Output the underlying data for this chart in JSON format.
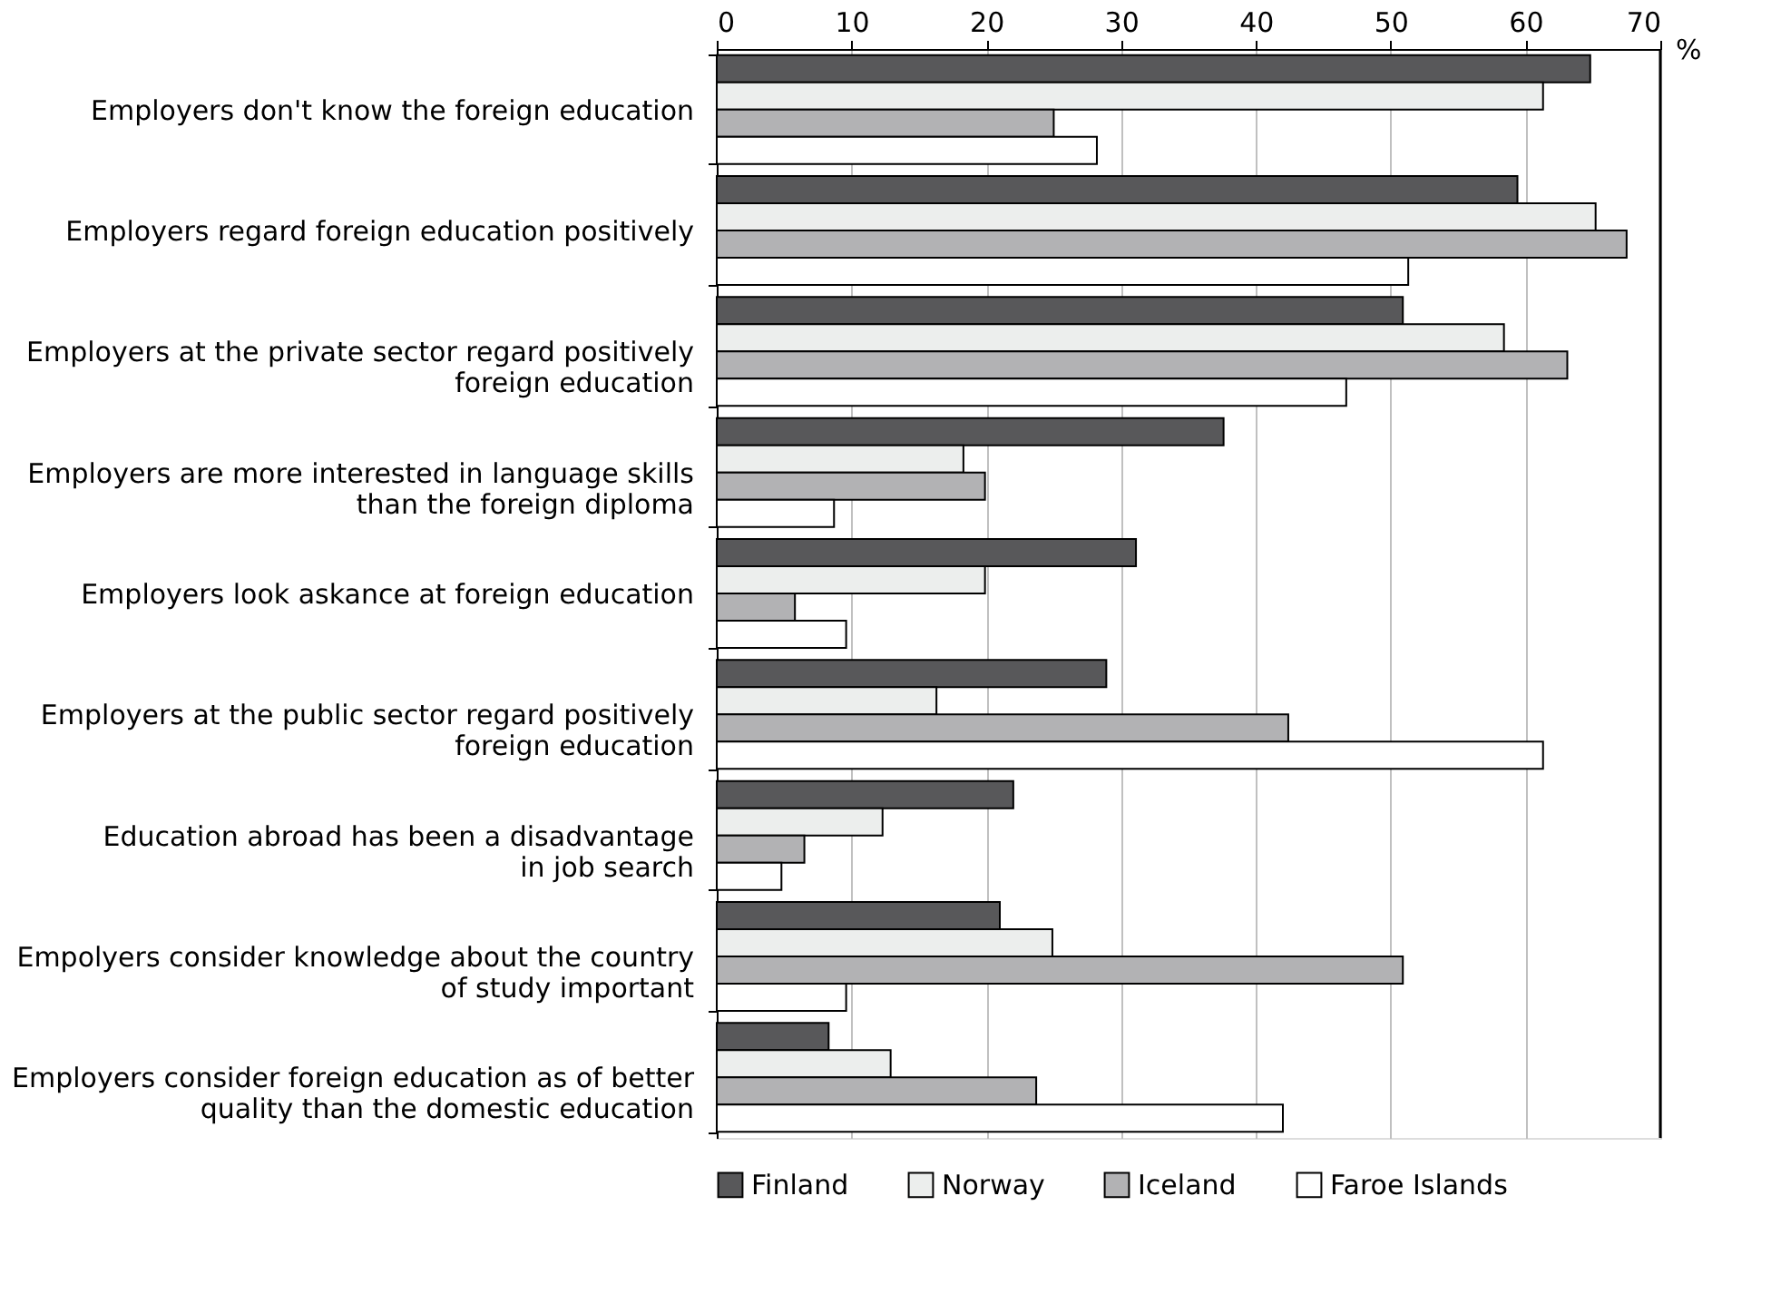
{
  "chart_data": {
    "type": "bar",
    "orientation": "horizontal",
    "xlabel": "%",
    "categories": [
      "Employers don't know the foreign education",
      "Employers regard foreign education positively",
      "Employers at the private sector regard positively\nforeign education",
      "Employers are more interested in language skills\nthan the foreign diploma",
      "Employers look askance at foreign education",
      "Employers at the public sector regard positively\nforeign education",
      "Education abroad has been a disadvantage\nin job search",
      "Empolyers consider knowledge about the country\nof study important",
      "Employers consider foreign education as of better\nquality than the domestic education"
    ],
    "series": [
      {
        "name": "Finland",
        "color": "#58585a",
        "values": [
          64.8,
          59.4,
          50.9,
          37.6,
          31.1,
          28.9,
          22.0,
          21.0,
          8.3
        ]
      },
      {
        "name": "Norway",
        "color": "#eceeed",
        "values": [
          61.3,
          65.2,
          58.4,
          18.3,
          19.9,
          16.3,
          12.3,
          24.9,
          12.9
        ]
      },
      {
        "name": "Iceland",
        "color": "#b2b2b4",
        "values": [
          25.0,
          67.5,
          63.1,
          19.9,
          5.8,
          42.4,
          6.5,
          50.9,
          23.7
        ]
      },
      {
        "name": "Faroe Islands",
        "color": "#ffffff",
        "values": [
          28.2,
          51.3,
          46.7,
          8.7,
          9.6,
          61.3,
          4.8,
          9.6,
          42.0
        ]
      }
    ],
    "xlim": [
      0,
      70
    ],
    "xticks": [
      0,
      10,
      20,
      30,
      40,
      50,
      60,
      70
    ],
    "grid": "x",
    "legend": "bottom"
  }
}
